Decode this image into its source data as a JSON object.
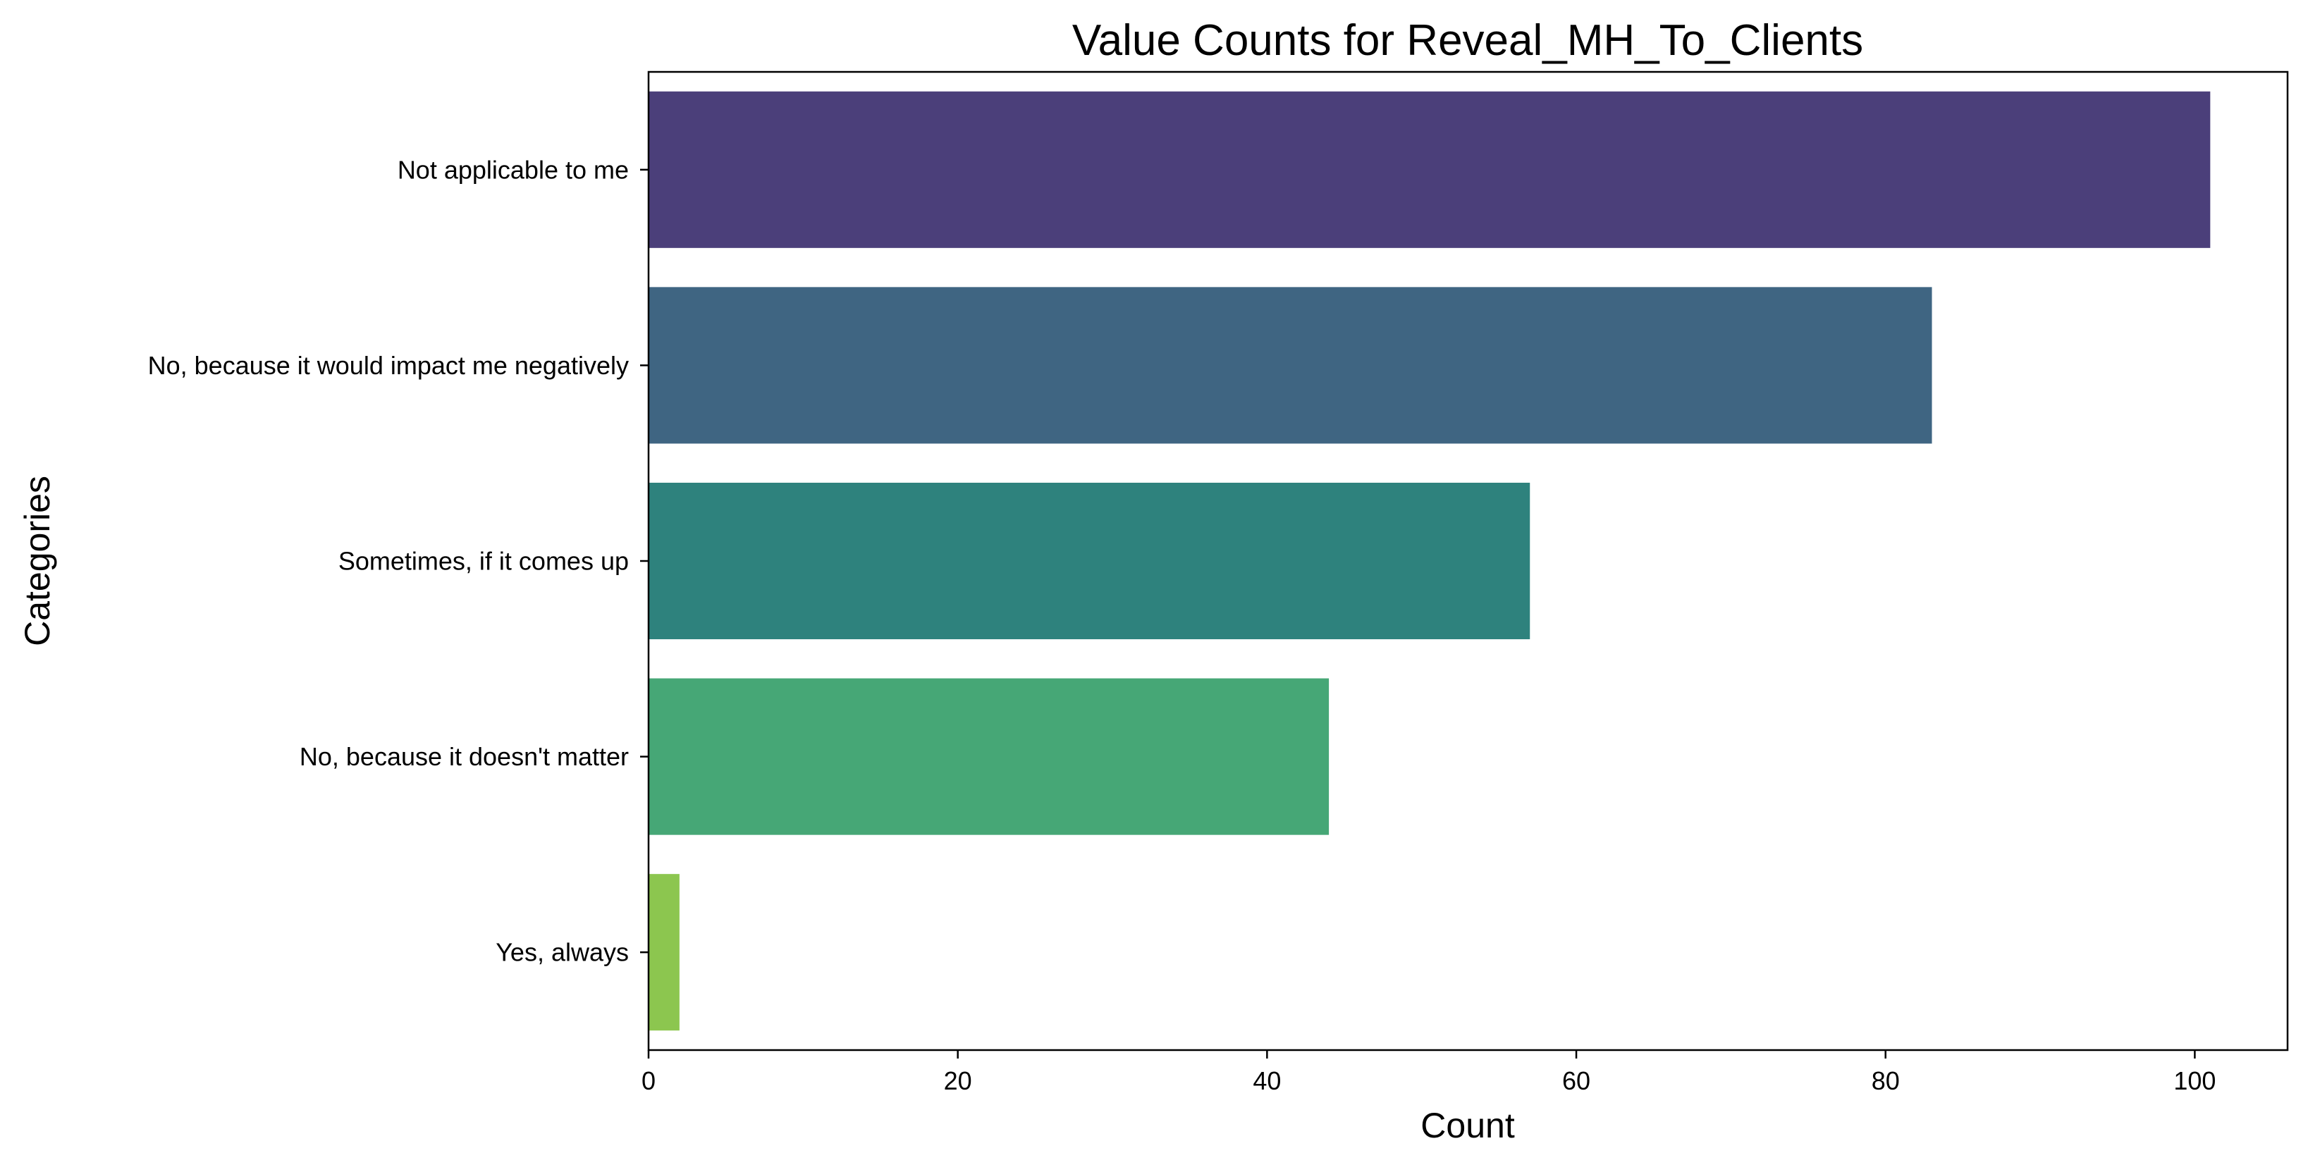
{
  "chart_data": {
    "type": "bar",
    "orientation": "horizontal",
    "title": "Value Counts for Reveal_MH_To_Clients",
    "xlabel": "Count",
    "ylabel": "Categories",
    "categories": [
      "Not applicable to me",
      "No, because it would impact me negatively",
      "Sometimes, if it comes up",
      "No, because it doesn't matter",
      "Yes, always"
    ],
    "values": [
      101,
      83,
      57,
      44,
      2
    ],
    "colors": [
      "#4b3f7a",
      "#3f6582",
      "#2e827d",
      "#46a776",
      "#8cc64f"
    ],
    "xlim": [
      0,
      106
    ],
    "xticks": [
      0,
      20,
      40,
      60,
      80,
      100
    ],
    "grid": false,
    "legend": "none"
  }
}
